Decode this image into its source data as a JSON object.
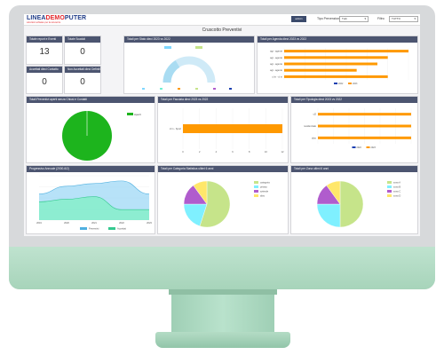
{
  "app": {
    "logo_main": "LINEA",
    "logo_overlay": "DEMO",
    "logo_end": "PUTER",
    "logo_tagline": "soluzioni software per la sicurezza",
    "user_button": "admin",
    "filter1_label": "Tipo Prevenzione",
    "filter1_value": "Tutti",
    "filter2_label": "Filtro",
    "filter2_value": "TUTTO",
    "page_title": "Cruscotto Preventivi"
  },
  "stats": {
    "total_title": "Totale report e Eventi",
    "total_value": "13",
    "open_title": "Totale Scaduti",
    "open_value": "0",
    "closed_title": "Accettati dieci Contatto",
    "closed_value": "0",
    "rejected_title": "Non Accettati dieci Definitiva",
    "rejected_value": "0"
  },
  "panels": {
    "gauge_title": "Totali per Stato dieci 2023 vs 2022",
    "agenda_title": "Totali per Agenda dieci 2023 vs 2022",
    "pie_title": "Totali Preventivi aperti senza Chiusi e Contatti",
    "facade_title": "Totali per Facciata dieci 2023 vs 2022",
    "type_title": "Totali per Tipologia dieci 2023 vs 2022",
    "trend_title": "Progressivo Annuale (2000-6/2)",
    "category_title": "Totali per Categoria Statistica ultimi 6 anni",
    "zone_title": "Totali per Zona ultimi 6 anni"
  },
  "colors": {
    "header": "#4c5570",
    "orange": "#ff9900",
    "blue": "#1a3fb0",
    "green": "#1db41d",
    "light_blue": "#7fd7ff",
    "teal": "#6ef0d2"
  },
  "chart_data": [
    {
      "type": "bar",
      "orientation": "horizontal",
      "categories": [
        "agt - agente",
        "agt - agente",
        "agt - agente",
        "agt - agente",
        "cl in - cl in"
      ],
      "series": [
        {
          "name": "2022",
          "values": [
            0,
            0,
            0,
            0,
            0
          ]
        },
        {
          "name": "2023",
          "values": [
            12,
            10,
            9,
            7,
            10
          ]
        }
      ],
      "xlim": [
        0,
        12
      ]
    },
    {
      "type": "pie",
      "series": [
        {
          "name": "Aperti",
          "values": [
            13
          ]
        }
      ]
    },
    {
      "type": "bar",
      "orientation": "horizontal",
      "categories": [
        "cl in - Sport"
      ],
      "series": [
        {
          "name": "2023",
          "values": [
            12
          ]
        }
      ],
      "xlim": [
        0,
        12
      ]
    },
    {
      "type": "bar",
      "orientation": "horizontal",
      "categories": [
        "cl2",
        "residenziale",
        "altro"
      ],
      "series": [
        {
          "name": "2022",
          "values": [
            0,
            0,
            0
          ]
        },
        {
          "name": "2023",
          "values": [
            10,
            10,
            10
          ]
        }
      ],
      "xlim": [
        0,
        10
      ]
    },
    {
      "type": "area",
      "x": [
        "2019",
        "2020",
        "2021",
        "2022",
        "2023"
      ],
      "series": [
        {
          "name": "Preventivi",
          "values": [
            10,
            13,
            14,
            15,
            10
          ]
        },
        {
          "name": "Accettati",
          "values": [
            7,
            8,
            9,
            4,
            4
          ]
        }
      ],
      "xlabel": "",
      "ylabel": "",
      "ylim": [
        0,
        17
      ]
    },
    {
      "type": "pie",
      "series": [
        {
          "name": "Categoria",
          "values": [
            55,
            20,
            15,
            10
          ]
        }
      ],
      "labels": [
        "categoria",
        "privato",
        "aziende",
        "altro"
      ],
      "colors": [
        "#c6e48a",
        "#7ff0ff",
        "#b05ccd",
        "#ffe76a"
      ]
    },
    {
      "type": "pie",
      "series": [
        {
          "name": "Zona",
          "values": [
            50,
            25,
            15,
            10
          ]
        }
      ],
      "labels": [
        "zona A",
        "zona B",
        "zona C",
        "zona D"
      ],
      "colors": [
        "#c6e48a",
        "#7ff0ff",
        "#b05ccd",
        "#ffe76a"
      ]
    }
  ]
}
